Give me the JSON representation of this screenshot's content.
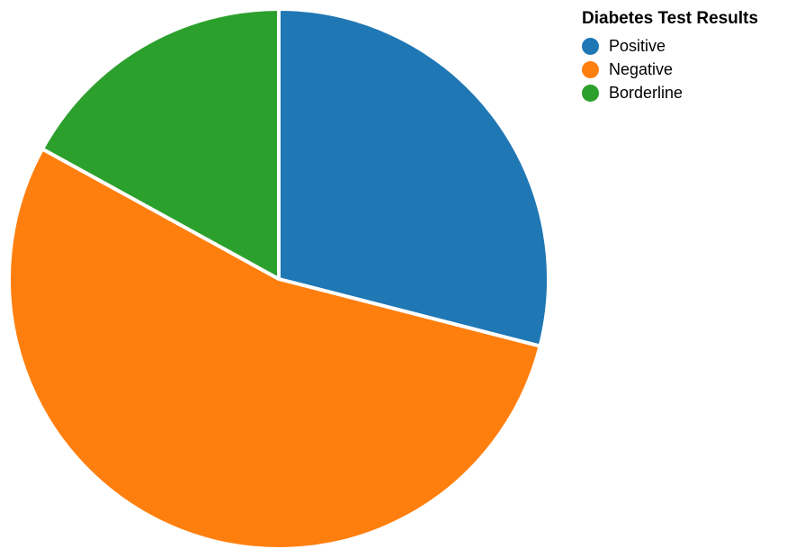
{
  "chart_data": {
    "type": "pie",
    "title": "",
    "legend_title": "Diabetes Test Results",
    "legend_position": "top-right",
    "start_angle": "12 o'clock, clockwise",
    "slices": [
      {
        "label": "Positive",
        "value": 29,
        "color": "#1f77b4"
      },
      {
        "label": "Negative",
        "value": 54,
        "color": "#ff7f0e"
      },
      {
        "label": "Borderline",
        "value": 17,
        "color": "#2ca02c"
      }
    ]
  }
}
